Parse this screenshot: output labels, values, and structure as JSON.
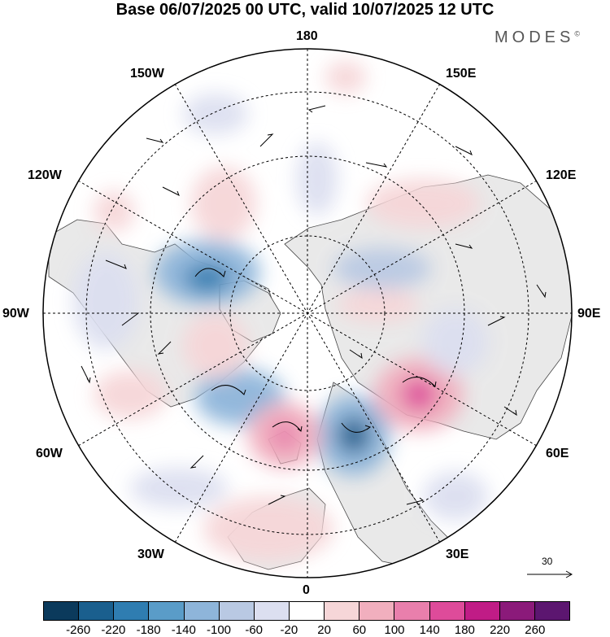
{
  "header": {
    "title": "Base 06/07/2025 00 UTC, valid 10/07/2025 12 UTC",
    "brand": "MODES",
    "brand_mark": "©"
  },
  "map": {
    "projection": "north-polar-stereographic",
    "longitude_labels": [
      "180",
      "150W",
      "150E",
      "120W",
      "120E",
      "90W",
      "90E",
      "60W",
      "60E",
      "30W",
      "30E",
      "0"
    ],
    "wind_reference_label": "30"
  },
  "colorbar": {
    "labels": [
      "-260",
      "-220",
      "-180",
      "-140",
      "-100",
      "-60",
      "-20",
      "20",
      "60",
      "100",
      "140",
      "180",
      "220",
      "260"
    ],
    "colors": [
      "#0b3a5c",
      "#1a5f8e",
      "#2f7db1",
      "#5a9cc8",
      "#8eb5da",
      "#b9c9e3",
      "#dcdff0",
      "#ffffff",
      "#f6d6d8",
      "#f1afbe",
      "#e97fac",
      "#de4b9a",
      "#c01c86",
      "#8b1a7a",
      "#5c1670"
    ]
  }
}
